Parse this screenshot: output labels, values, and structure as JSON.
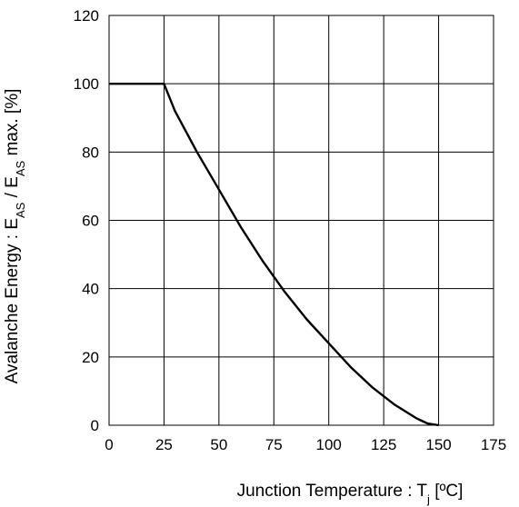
{
  "chart_data": {
    "type": "line",
    "xlabel_parts": {
      "main": "Junction Temperature : T",
      "sub": "j",
      "tail": " [ºC]"
    },
    "ylabel_parts": {
      "p1": "Avalanche Energy : E",
      "s1": "AS",
      "p2": " / E",
      "s2": "AS",
      "p3": " max. [%]"
    },
    "xlim": [
      0,
      175
    ],
    "ylim": [
      0,
      120
    ],
    "xticks": [
      "0",
      "25",
      "50",
      "75",
      "100",
      "125",
      "150",
      "175"
    ],
    "yticks": [
      "0",
      "20",
      "40",
      "60",
      "80",
      "100",
      "120"
    ],
    "grid": true,
    "series": [
      {
        "x": [
          0,
          25,
          30,
          40,
          50,
          60,
          70,
          80,
          90,
          100,
          110,
          120,
          130,
          140,
          145,
          150
        ],
        "y": [
          100,
          100,
          92,
          80,
          69,
          58,
          48,
          39,
          31,
          24,
          17,
          11,
          6,
          2,
          0.5,
          0
        ]
      }
    ],
    "line_color": "#000000",
    "grid_color": "#000000"
  }
}
